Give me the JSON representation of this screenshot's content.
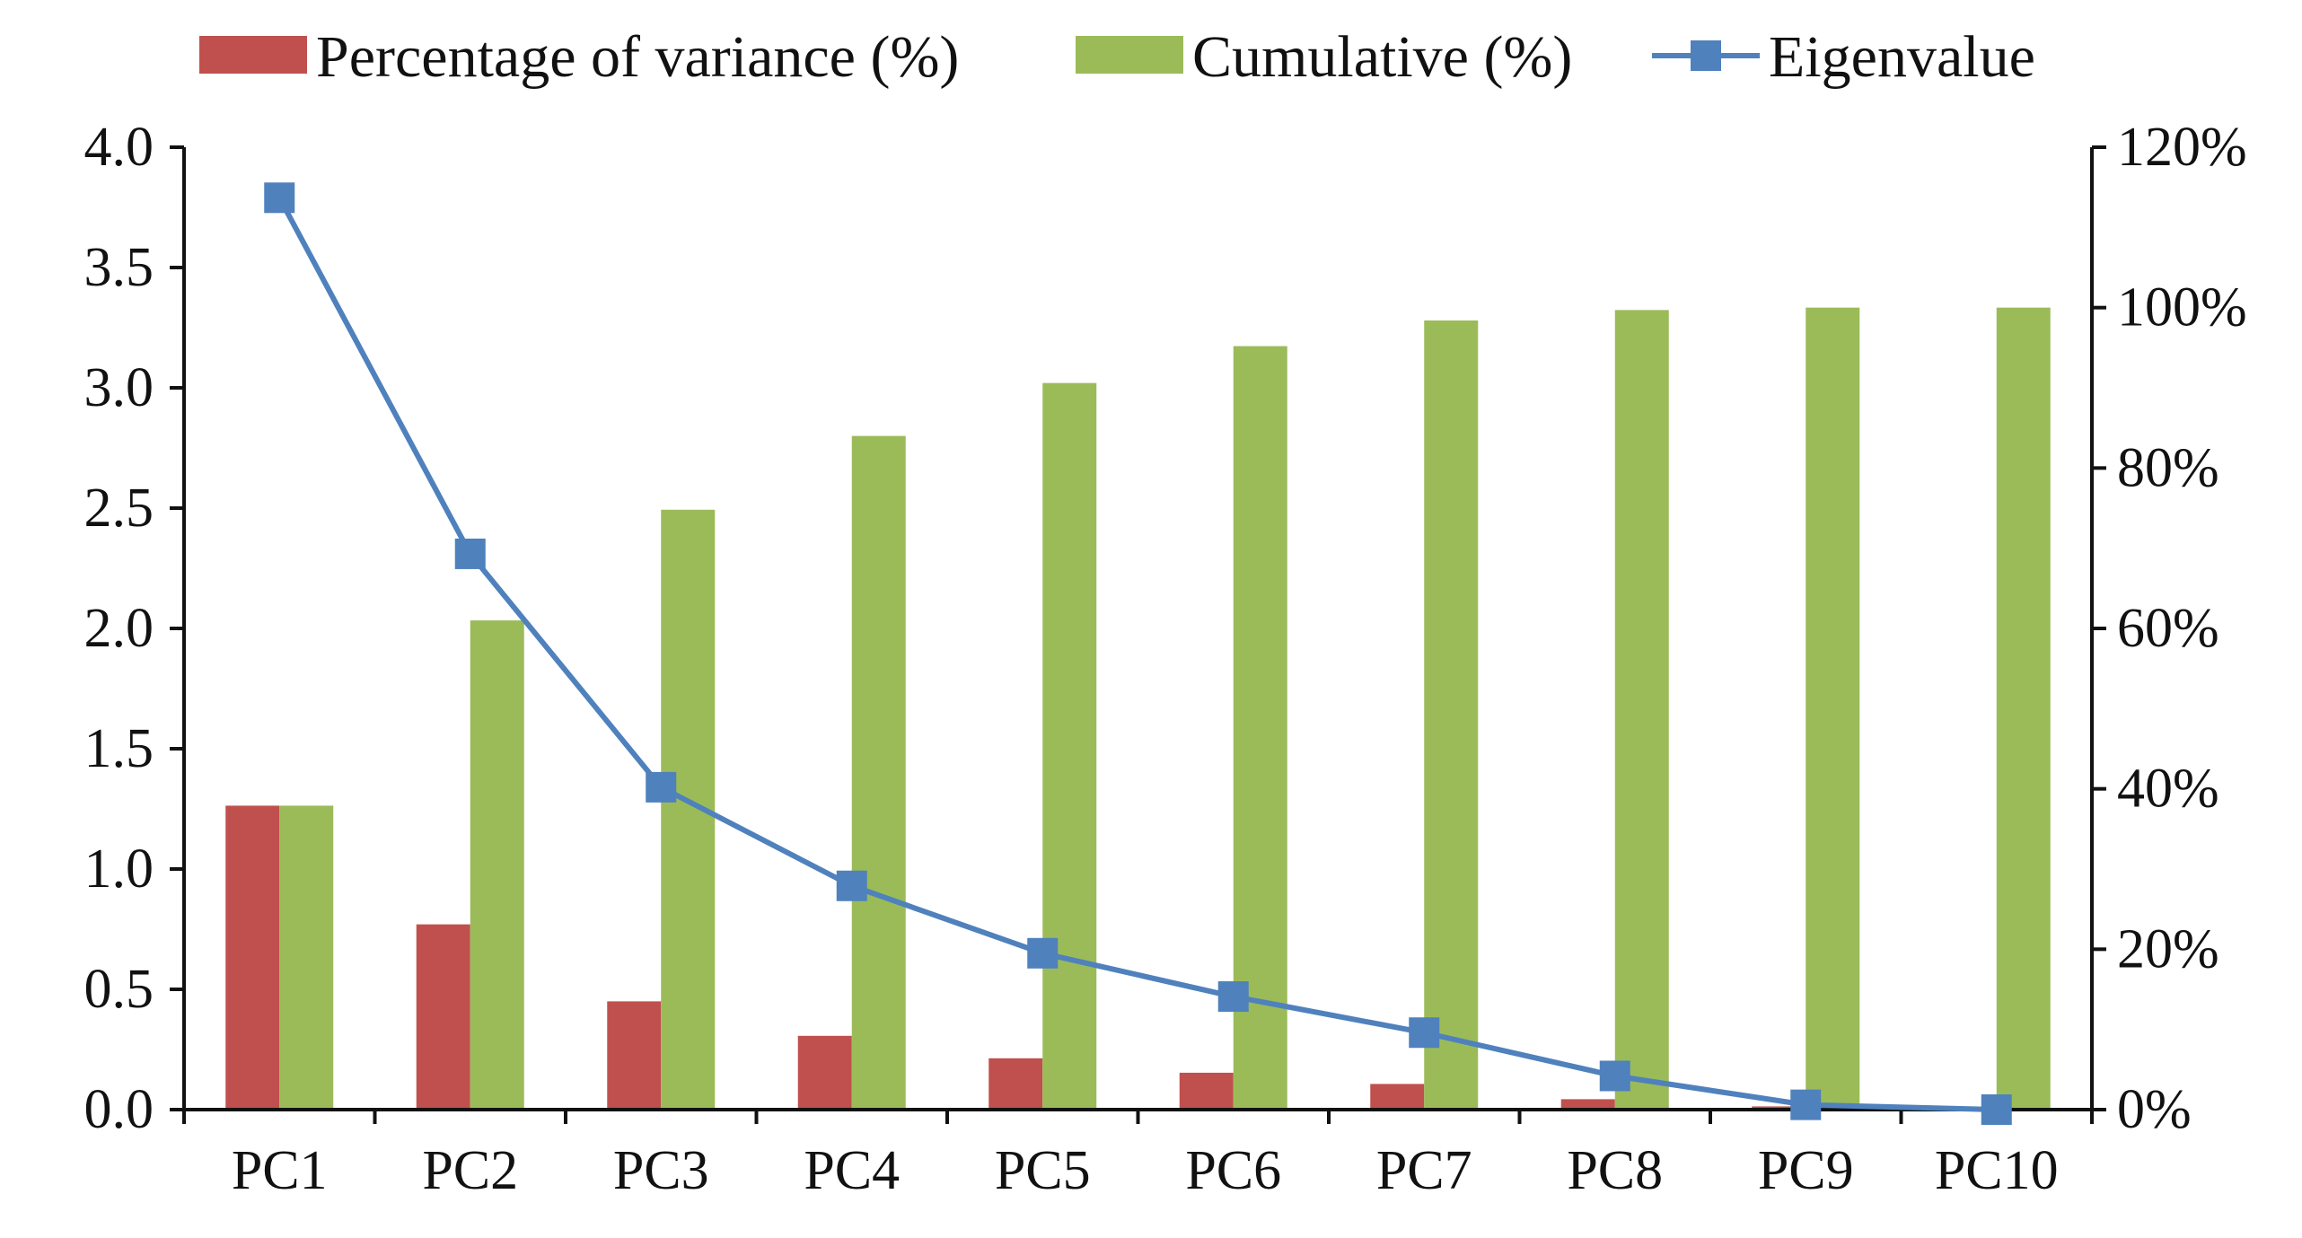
{
  "chart_data": {
    "type": "bar",
    "categories": [
      "PC1",
      "PC2",
      "PC3",
      "PC4",
      "PC5",
      "PC6",
      "PC7",
      "PC8",
      "PC9",
      "PC10"
    ],
    "series": [
      {
        "name": "Percentage of variance (%)",
        "axis": "right",
        "kind": "bar",
        "color": "#C0504D",
        "values": [
          37.9,
          23.1,
          13.5,
          9.2,
          6.4,
          4.6,
          3.2,
          1.3,
          0.4,
          0.0
        ]
      },
      {
        "name": "Cumulative (%)",
        "axis": "right",
        "kind": "bar",
        "color": "#9BBB59",
        "values": [
          37.9,
          61.0,
          74.8,
          84.0,
          90.6,
          95.2,
          98.4,
          99.7,
          100.0,
          100.0
        ]
      },
      {
        "name": "Eigenvalue",
        "axis": "left",
        "kind": "line",
        "color": "#4F81BD",
        "values": [
          3.79,
          2.31,
          1.34,
          0.93,
          0.65,
          0.47,
          0.32,
          0.14,
          0.02,
          0.0
        ]
      }
    ],
    "y_left": {
      "ylim": [
        0,
        4.0
      ],
      "ticks": [
        "0.0",
        "0.5",
        "1.0",
        "1.5",
        "2.0",
        "2.5",
        "3.0",
        "3.5",
        "4.0"
      ]
    },
    "y_right": {
      "ylim": [
        0,
        120
      ],
      "ticks": [
        "0%",
        "20%",
        "40%",
        "60%",
        "80%",
        "100%",
        "120%"
      ]
    },
    "legend": [
      "Percentage of variance (%)",
      "Cumulative (%)",
      "Eigenvalue"
    ],
    "legend_position": "top",
    "grid": false,
    "title": "",
    "xlabel": "",
    "ylabel": ""
  }
}
